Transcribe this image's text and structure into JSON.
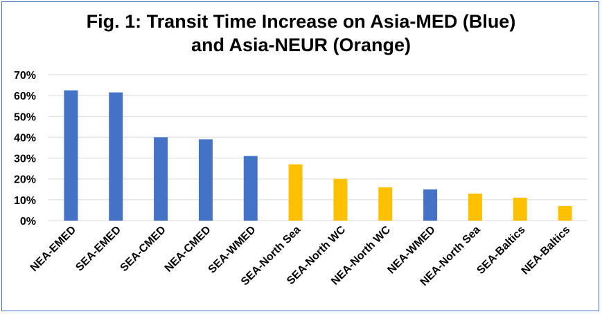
{
  "chart_data": {
    "type": "bar",
    "title_line1": "Fig. 1: Transit Time Increase on Asia-MED (Blue)",
    "title_line2": "and Asia-NEUR (Orange)",
    "xlabel": "",
    "ylabel": "",
    "ylim": [
      0,
      70
    ],
    "y_ticks": [
      "0%",
      "10%",
      "20%",
      "30%",
      "40%",
      "50%",
      "60%",
      "70%"
    ],
    "grid": true,
    "categories": [
      "NEA-EMED",
      "SEA-EMED",
      "SEA-CMED",
      "NEA-CMED",
      "SEA-WMED",
      "SEA-North Sea",
      "SEA-North WC",
      "NEA-North WC",
      "NEA-WMED",
      "NEA-North Sea",
      "SEA-Baltics",
      "NEA-Baltics"
    ],
    "values": [
      62.5,
      61.5,
      40,
      39,
      31,
      27,
      20,
      16,
      15,
      13,
      11,
      7
    ],
    "groups": [
      "Asia-MED",
      "Asia-MED",
      "Asia-MED",
      "Asia-MED",
      "Asia-MED",
      "Asia-NEUR",
      "Asia-NEUR",
      "Asia-NEUR",
      "Asia-MED",
      "Asia-NEUR",
      "Asia-NEUR",
      "Asia-NEUR"
    ],
    "colors": {
      "Asia-MED": "#4472c4",
      "Asia-NEUR": "#ffc000",
      "grid": "#d9d9d9"
    }
  }
}
